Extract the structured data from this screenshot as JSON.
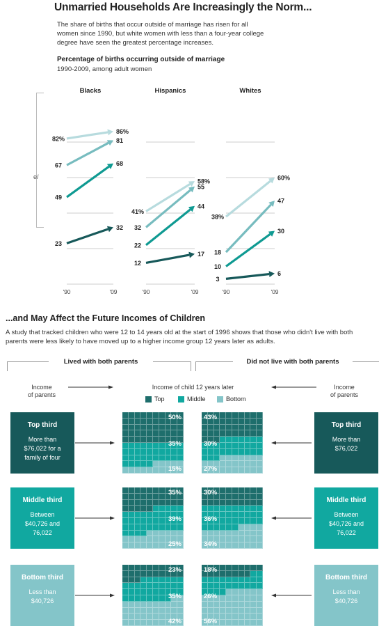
{
  "header": {
    "title": "Unmarried Households Are Increasingly the Norm...",
    "subtitle": "The share of births that occur outside of marriage has risen for all women since 1990, but white women with less than a four-year college degree have seen the greatest percentage increases.",
    "chart_title": "Percentage of births occurring outside of marriage",
    "chart_subtitle": "1990-2009, among adult women",
    "side_fragment": "e/"
  },
  "colors": {
    "darkest": "#17595a",
    "dark": "#0f9a92",
    "medium": "#77bcbf",
    "light": "#b7dbde",
    "grid_top": "#1e6e6c",
    "grid_mid": "#11a8a0",
    "grid_bot": "#84c5c9"
  },
  "chart_data": [
    {
      "type": "line",
      "title": "Blacks",
      "x": [
        "'90",
        "'09"
      ],
      "ylim": [
        0,
        100
      ],
      "series": [
        {
          "values": [
            82,
            86
          ],
          "labels": [
            "82%",
            "86%"
          ],
          "color_key": "light"
        },
        {
          "values": [
            67,
            81
          ],
          "labels": [
            "67",
            "81"
          ],
          "color_key": "medium"
        },
        {
          "values": [
            49,
            68
          ],
          "labels": [
            "49",
            "68"
          ],
          "color_key": "dark"
        },
        {
          "values": [
            23,
            32
          ],
          "labels": [
            "23",
            "32"
          ],
          "color_key": "darkest"
        }
      ]
    },
    {
      "type": "line",
      "title": "Hispanics",
      "x": [
        "'90",
        "'09"
      ],
      "ylim": [
        0,
        100
      ],
      "series": [
        {
          "values": [
            41,
            58
          ],
          "labels": [
            "41%",
            "58%"
          ],
          "color_key": "light"
        },
        {
          "values": [
            32,
            55
          ],
          "labels": [
            "32",
            "55"
          ],
          "color_key": "medium"
        },
        {
          "values": [
            22,
            44
          ],
          "labels": [
            "22",
            "44"
          ],
          "color_key": "dark"
        },
        {
          "values": [
            12,
            17
          ],
          "labels": [
            "12",
            "17"
          ],
          "color_key": "darkest"
        }
      ]
    },
    {
      "type": "line",
      "title": "Whites",
      "x": [
        "'90",
        "'09"
      ],
      "ylim": [
        0,
        100
      ],
      "series": [
        {
          "values": [
            38,
            60
          ],
          "labels": [
            "38%",
            "60%"
          ],
          "color_key": "light"
        },
        {
          "values": [
            18,
            47
          ],
          "labels": [
            "18",
            "47"
          ],
          "color_key": "medium"
        },
        {
          "values": [
            10,
            30
          ],
          "labels": [
            "10",
            "30"
          ],
          "color_key": "dark"
        },
        {
          "values": [
            3,
            6
          ],
          "labels": [
            "3",
            "6"
          ],
          "color_key": "darkest"
        }
      ]
    },
    {
      "type": "heatmap",
      "title": "Income of child 12 years later",
      "legend": [
        "Top",
        "Middle",
        "Bottom"
      ],
      "groups": [
        {
          "name": "Lived with both parents",
          "rows": [
            {
              "parent_income": "Top third",
              "shares": {
                "Top": 50,
                "Middle": 35,
                "Bottom": 15
              },
              "labels": [
                "50%",
                "35%",
                "15%"
              ]
            },
            {
              "parent_income": "Middle third",
              "shares": {
                "Top": 35,
                "Middle": 39,
                "Bottom": 25
              },
              "labels": [
                "35%",
                "39%",
                "25%"
              ]
            },
            {
              "parent_income": "Bottom third",
              "shares": {
                "Top": 23,
                "Middle": 35,
                "Bottom": 42
              },
              "labels": [
                "23%",
                "35%",
                "42%"
              ]
            }
          ]
        },
        {
          "name": "Did not live with both parents",
          "rows": [
            {
              "parent_income": "Top third",
              "shares": {
                "Top": 43,
                "Middle": 30,
                "Bottom": 27
              },
              "labels": [
                "43%",
                "30%",
                "27%"
              ]
            },
            {
              "parent_income": "Middle third",
              "shares": {
                "Top": 30,
                "Middle": 36,
                "Bottom": 34
              },
              "labels": [
                "30%",
                "36%",
                "34%"
              ]
            },
            {
              "parent_income": "Bottom third",
              "shares": {
                "Top": 18,
                "Middle": 26,
                "Bottom": 56
              },
              "labels": [
                "18%",
                "26%",
                "56%"
              ]
            }
          ]
        }
      ]
    }
  ],
  "section2": {
    "title": "...and May Affect the Future Incomes of Children",
    "subtitle": "A study that tracked children who were 12 to 14 years old at the start of 1996 shows that those who didn't live with both parents were less likely to have moved up to a higher income group 12 years later as adults.",
    "left_group": "Lived with both parents",
    "right_group": "Did not live with both parents",
    "income_of_parents_line1": "Income",
    "income_of_parents_line2": "of parents",
    "income_child": "Income of child 12 years later",
    "legend": [
      "Top",
      "Middle",
      "Bottom"
    ]
  },
  "boxes": {
    "left": [
      {
        "title": "Top third",
        "desc": [
          "More than",
          "$76,022 for a",
          "family of four"
        ]
      },
      {
        "title": "Middle third",
        "desc": [
          "Between",
          "$40,726 and",
          "76,022"
        ]
      },
      {
        "title": "Bottom third",
        "desc": [
          "Less than",
          "$40,726"
        ]
      }
    ],
    "right": [
      {
        "title": "Top third",
        "desc": [
          "More than",
          "$76,022"
        ]
      },
      {
        "title": "Middle third",
        "desc": [
          "Between",
          "$40,726 and",
          "76,022"
        ]
      },
      {
        "title": "Bottom third",
        "desc": [
          "Less than",
          "$40,726"
        ]
      }
    ]
  }
}
